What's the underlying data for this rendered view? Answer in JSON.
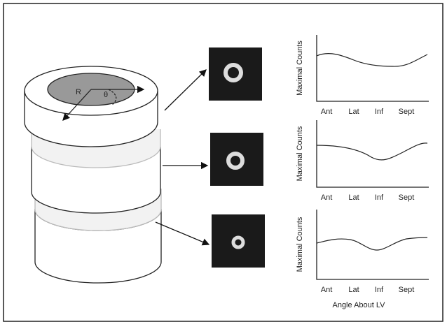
{
  "figure": {
    "cylinder": {
      "radius_label": "R",
      "angle_label": "θ"
    },
    "plots": [
      {
        "y_label": "Maximal Counts",
        "x_ticks": [
          "Ant",
          "Lat",
          "Inf",
          "Sept"
        ]
      },
      {
        "y_label": "Maximal Counts",
        "x_ticks": [
          "Ant",
          "Lat",
          "Inf",
          "Sept"
        ]
      },
      {
        "y_label": "Maximal Counts",
        "x_ticks": [
          "Ant",
          "Lat",
          "Inf",
          "Sept"
        ]
      }
    ],
    "x_label": "Angle About LV"
  }
}
